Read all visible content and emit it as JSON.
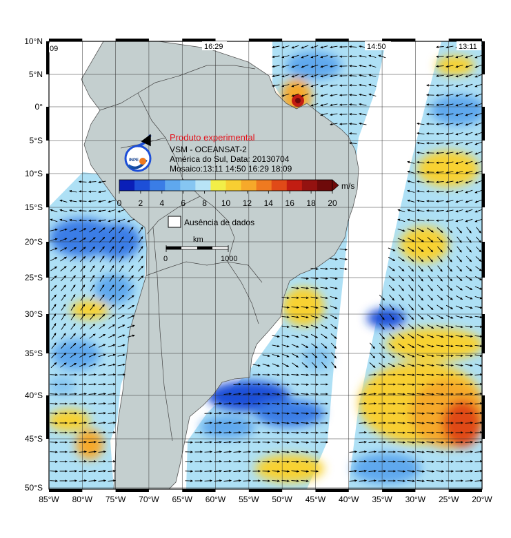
{
  "product": {
    "tag": "Produto experimental",
    "title": "VSM - OCEANSAT-2",
    "region_date": "América do Sul, Data: 20130704",
    "mosaic": "Mosaico:13:11 14:50 16:29 18:09",
    "logo_text": "INPE"
  },
  "colorbar": {
    "unit": "m/s",
    "ticks": [
      "0",
      "2",
      "4",
      "6",
      "8",
      "10",
      "12",
      "14",
      "16",
      "18",
      "20"
    ],
    "colors": [
      "#0a1fb8",
      "#1d4fd8",
      "#3a7de6",
      "#5fa8ee",
      "#86c6f2",
      "#b8e4f6",
      "#f2ee48",
      "#f8cf32",
      "#f6a92a",
      "#ef7a20",
      "#e04a18",
      "#c21d12",
      "#941210",
      "#6e0a0a"
    ]
  },
  "legend": {
    "no_data": "Ausência de dados",
    "scale_unit": "km",
    "scale_start": "0",
    "scale_end": "1000"
  },
  "swath_times": [
    "09",
    "16:29",
    "14:50",
    "13:11"
  ],
  "axes": {
    "lat_labels": [
      "10°N",
      "5°N",
      "0°",
      "5°S",
      "10°S",
      "15°S",
      "20°S",
      "25°S",
      "30°S",
      "35°S",
      "40°S",
      "45°S",
      "50°S"
    ],
    "lon_labels": [
      "85°W",
      "80°W",
      "75°W",
      "70°W",
      "65°W",
      "60°W",
      "55°W",
      "50°W",
      "45°W",
      "40°W",
      "35°W",
      "30°W",
      "25°W",
      "20°W"
    ]
  },
  "colors": {
    "land": "#c4cfcf",
    "ocean_low": "#aee0f5",
    "ocean_mid": "#5fa8ee",
    "ocean_high": "#f8d232",
    "arrow": "#000000"
  }
}
